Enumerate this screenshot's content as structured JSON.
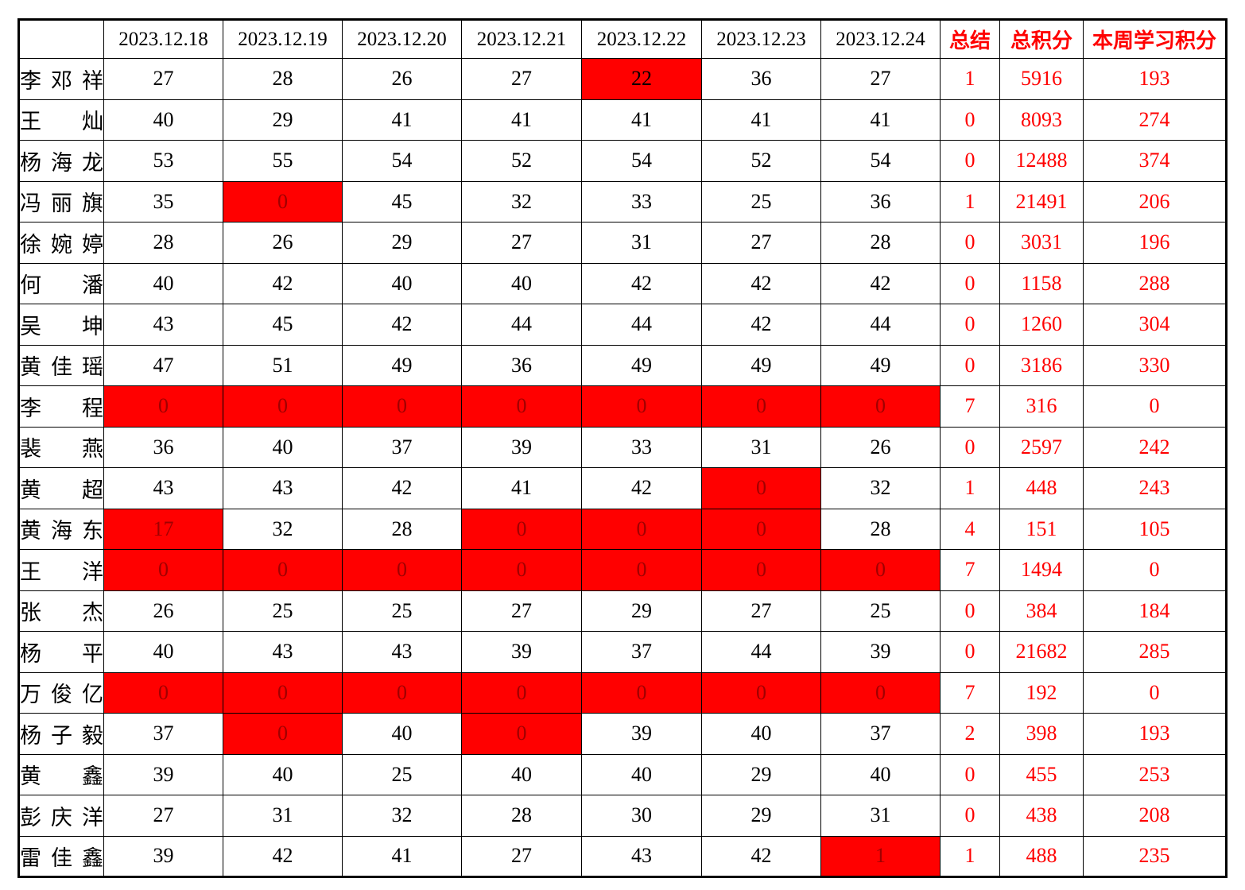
{
  "colors": {
    "cell_fill_red": "#FF0000",
    "red_text": "#FF0000",
    "dark_red_value_text": "#A00000",
    "border": "#000000"
  },
  "table": {
    "header": {
      "name_col": "",
      "dates": [
        "2023.12.18",
        "2023.12.19",
        "2023.12.20",
        "2023.12.21",
        "2023.12.22",
        "2023.12.23",
        "2023.12.24"
      ],
      "summary_label": "总结",
      "total_label": "总积分",
      "week_label": "本周学习积分"
    },
    "rows": [
      {
        "name": "李邓祥",
        "days": [
          "27",
          "28",
          "26",
          "27",
          "22",
          "36",
          "27"
        ],
        "red_cells": [],
        "red_cells_black": [
          4
        ],
        "summary": "1",
        "total": "5916",
        "week": "193"
      },
      {
        "name": "王灿",
        "days": [
          "40",
          "29",
          "41",
          "41",
          "41",
          "41",
          "41"
        ],
        "red_cells": [],
        "red_cells_black": [],
        "summary": "0",
        "total": "8093",
        "week": "274"
      },
      {
        "name": "杨海龙",
        "days": [
          "53",
          "55",
          "54",
          "52",
          "54",
          "52",
          "54"
        ],
        "red_cells": [],
        "red_cells_black": [],
        "summary": "0",
        "total": "12488",
        "week": "374"
      },
      {
        "name": "冯丽旗",
        "days": [
          "35",
          "0",
          "45",
          "32",
          "33",
          "25",
          "36"
        ],
        "red_cells": [
          1
        ],
        "red_cells_black": [],
        "summary": "1",
        "total": "21491",
        "week": "206"
      },
      {
        "name": "徐婉婷",
        "days": [
          "28",
          "26",
          "29",
          "27",
          "31",
          "27",
          "28"
        ],
        "red_cells": [],
        "red_cells_black": [],
        "summary": "0",
        "total": "3031",
        "week": "196"
      },
      {
        "name": "何潘",
        "days": [
          "40",
          "42",
          "40",
          "40",
          "42",
          "42",
          "42"
        ],
        "red_cells": [],
        "red_cells_black": [],
        "summary": "0",
        "total": "1158",
        "week": "288"
      },
      {
        "name": "吴坤",
        "days": [
          "43",
          "45",
          "42",
          "44",
          "44",
          "42",
          "44"
        ],
        "red_cells": [],
        "red_cells_black": [],
        "summary": "0",
        "total": "1260",
        "week": "304"
      },
      {
        "name": "黄佳瑶",
        "days": [
          "47",
          "51",
          "49",
          "36",
          "49",
          "49",
          "49"
        ],
        "red_cells": [],
        "red_cells_black": [],
        "summary": "0",
        "total": "3186",
        "week": "330"
      },
      {
        "name": "李程",
        "days": [
          "0",
          "0",
          "0",
          "0",
          "0",
          "0",
          "0"
        ],
        "red_cells": [
          0,
          1,
          2,
          3,
          4,
          5,
          6
        ],
        "red_cells_black": [],
        "summary": "7",
        "total": "316",
        "week": "0"
      },
      {
        "name": "裴燕",
        "days": [
          "36",
          "40",
          "37",
          "39",
          "33",
          "31",
          "26"
        ],
        "red_cells": [],
        "red_cells_black": [],
        "summary": "0",
        "total": "2597",
        "week": "242"
      },
      {
        "name": "黄超",
        "days": [
          "43",
          "43",
          "42",
          "41",
          "42",
          "0",
          "32"
        ],
        "red_cells": [
          5
        ],
        "red_cells_black": [],
        "summary": "1",
        "total": "448",
        "week": "243"
      },
      {
        "name": "黄海东",
        "days": [
          "17",
          "32",
          "28",
          "0",
          "0",
          "0",
          "28"
        ],
        "red_cells": [
          0,
          3,
          4,
          5
        ],
        "red_cells_black": [],
        "summary": "4",
        "total": "151",
        "week": "105"
      },
      {
        "name": "王洋",
        "days": [
          "0",
          "0",
          "0",
          "0",
          "0",
          "0",
          "0"
        ],
        "red_cells": [
          0,
          1,
          2,
          3,
          4,
          5,
          6
        ],
        "red_cells_black": [],
        "summary": "7",
        "total": "1494",
        "week": "0"
      },
      {
        "name": "张杰",
        "days": [
          "26",
          "25",
          "25",
          "27",
          "29",
          "27",
          "25"
        ],
        "red_cells": [],
        "red_cells_black": [],
        "summary": "0",
        "total": "384",
        "week": "184"
      },
      {
        "name": "杨平",
        "days": [
          "40",
          "43",
          "43",
          "39",
          "37",
          "44",
          "39"
        ],
        "red_cells": [],
        "red_cells_black": [],
        "summary": "0",
        "total": "21682",
        "week": "285"
      },
      {
        "name": "万俊亿",
        "days": [
          "0",
          "0",
          "0",
          "0",
          "0",
          "0",
          "0"
        ],
        "red_cells": [
          0,
          1,
          2,
          3,
          4,
          5,
          6
        ],
        "red_cells_black": [],
        "summary": "7",
        "total": "192",
        "week": "0"
      },
      {
        "name": "杨子毅",
        "days": [
          "37",
          "0",
          "40",
          "0",
          "39",
          "40",
          "37"
        ],
        "red_cells": [
          1,
          3
        ],
        "red_cells_black": [],
        "summary": "2",
        "total": "398",
        "week": "193"
      },
      {
        "name": "黄鑫",
        "days": [
          "39",
          "40",
          "25",
          "40",
          "40",
          "29",
          "40"
        ],
        "red_cells": [],
        "red_cells_black": [],
        "summary": "0",
        "total": "455",
        "week": "253"
      },
      {
        "name": "彭庆洋",
        "days": [
          "27",
          "31",
          "32",
          "28",
          "30",
          "29",
          "31"
        ],
        "red_cells": [],
        "red_cells_black": [],
        "summary": "0",
        "total": "438",
        "week": "208"
      },
      {
        "name": "雷佳鑫",
        "days": [
          "39",
          "42",
          "41",
          "27",
          "43",
          "42",
          "1"
        ],
        "red_cells": [
          6
        ],
        "red_cells_black": [],
        "summary": "1",
        "total": "488",
        "week": "235"
      }
    ]
  }
}
